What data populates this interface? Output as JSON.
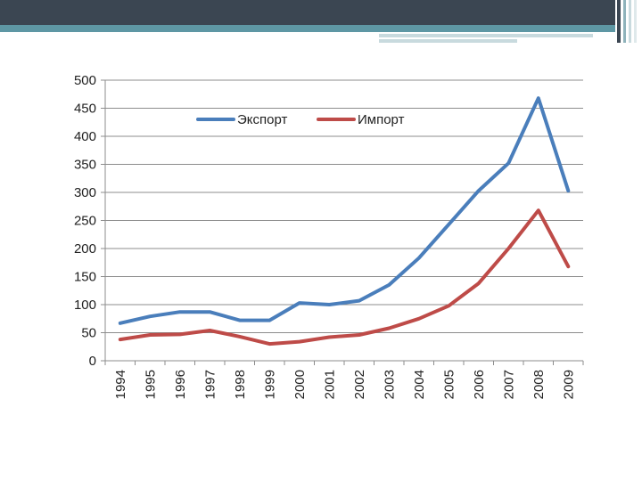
{
  "chart_data": {
    "type": "line",
    "categories": [
      "1994",
      "1995",
      "1996",
      "1997",
      "1998",
      "1999",
      "2000",
      "2001",
      "2002",
      "2003",
      "2004",
      "2005",
      "2006",
      "2007",
      "2008",
      "2009"
    ],
    "series": [
      {
        "name": "Экспорт",
        "color": "#4a7ebb",
        "values": [
          67,
          79,
          87,
          87,
          72,
          72,
          103,
          100,
          107,
          135,
          183,
          243,
          303,
          352,
          468,
          303
        ]
      },
      {
        "name": "Импорт",
        "color": "#be4b48",
        "values": [
          38,
          46,
          47,
          54,
          43,
          30,
          34,
          42,
          46,
          58,
          75,
          98,
          138,
          200,
          268,
          168
        ]
      }
    ],
    "y_ticks": [
      "0",
      "50",
      "100",
      "150",
      "200",
      "250",
      "300",
      "350",
      "400",
      "450",
      "500"
    ],
    "ylim": [
      0,
      500
    ],
    "grid": true,
    "legend": "top-center"
  }
}
